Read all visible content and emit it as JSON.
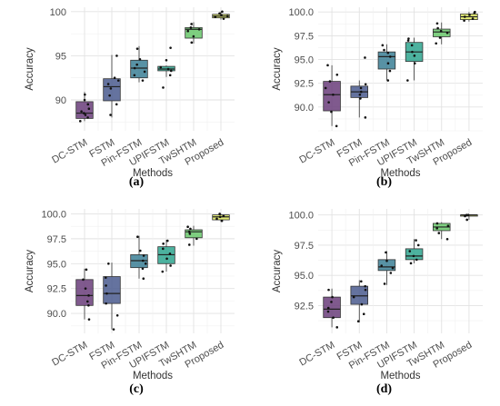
{
  "chart_data": [
    {
      "type": "box",
      "panel_label": "(a)",
      "xlabel": "Methods",
      "ylabel": "Accuracy",
      "categories": [
        "DC-STM",
        "FSTM",
        "Pin-FSTM",
        "UPIFSTM",
        "TwSHTM",
        "Proposed"
      ],
      "ylim": [
        86.5,
        100.5
      ],
      "yticks": [
        "90",
        "95",
        "100"
      ],
      "grid": true,
      "boxes": [
        {
          "category": "DC-STM",
          "whisker_low": 87.6,
          "q1": 87.9,
          "median": 88.5,
          "q3": 89.8,
          "whisker_high": 90.9,
          "color": "#6a3d7a",
          "points": [
            87.6,
            88.0,
            88.3,
            88.5,
            88.7,
            89.0,
            89.5,
            90.0,
            90.6
          ]
        },
        {
          "category": "FSTM",
          "whisker_low": 88.0,
          "q1": 89.9,
          "median": 91.5,
          "q3": 92.4,
          "whisker_high": 95.1,
          "color": "#4a5a8e",
          "points": [
            88.3,
            89.5,
            90.5,
            91.3,
            91.8,
            92.2,
            92.5,
            95.0
          ]
        },
        {
          "category": "Pin-FSTM",
          "whisker_low": 92.0,
          "q1": 92.5,
          "median": 93.6,
          "q3": 94.5,
          "whisker_high": 96.1,
          "color": "#3b7f95",
          "points": [
            92.2,
            92.8,
            93.2,
            93.6,
            94.0,
            94.6,
            95.8
          ]
        },
        {
          "category": "UPIFSTM",
          "whisker_low": 92.6,
          "q1": 93.3,
          "median": 93.5,
          "q3": 93.8,
          "whisker_high": 93.9,
          "color": "#2ea58e",
          "points": [
            91.4,
            92.8,
            93.3,
            93.5,
            93.7,
            94.5,
            95.9
          ]
        },
        {
          "category": "TwSHTM",
          "whisker_low": 96.4,
          "q1": 97.0,
          "median": 98.0,
          "q3": 98.2,
          "whisker_high": 98.8,
          "color": "#67c76a",
          "points": [
            96.5,
            97.2,
            97.8,
            98.0,
            98.2,
            98.6
          ]
        },
        {
          "category": "Proposed",
          "whisker_low": 99.1,
          "q1": 99.3,
          "median": 99.5,
          "q3": 99.7,
          "whisker_high": 100.0,
          "color": "#dde65e",
          "points": [
            99.2,
            99.4,
            99.5,
            99.6,
            99.8,
            100.0
          ]
        }
      ]
    },
    {
      "type": "box",
      "panel_label": "(b)",
      "xlabel": "Methods",
      "ylabel": "Accuracy",
      "categories": [
        "DC-STM",
        "FSTM",
        "Pin-FSTM",
        "UPIFSTM",
        "TwSHTM",
        "Proposed"
      ],
      "ylim": [
        87.5,
        100.5
      ],
      "yticks": [
        "90.0",
        "92.5",
        "95.0",
        "97.5",
        "100.0"
      ],
      "grid": true,
      "boxes": [
        {
          "category": "DC-STM",
          "whisker_low": 88.0,
          "q1": 89.6,
          "median": 91.3,
          "q3": 92.7,
          "whisker_high": 94.4,
          "color": "#6a3d7a",
          "points": [
            88.0,
            89.5,
            90.5,
            91.3,
            92.0,
            92.7,
            93.4,
            94.4
          ]
        },
        {
          "category": "FSTM",
          "whisker_low": 88.9,
          "q1": 91.0,
          "median": 91.6,
          "q3": 92.2,
          "whisker_high": 92.8,
          "color": "#4a5a8e",
          "points": [
            88.9,
            90.9,
            91.3,
            91.6,
            92.0,
            92.4,
            95.2
          ]
        },
        {
          "category": "Pin-FSTM",
          "whisker_low": 92.8,
          "q1": 94.0,
          "median": 95.3,
          "q3": 95.8,
          "whisker_high": 96.6,
          "color": "#3b7f95",
          "points": [
            92.8,
            93.8,
            94.6,
            95.3,
            95.7,
            96.0,
            96.5
          ]
        },
        {
          "category": "UPIFSTM",
          "whisker_low": 92.8,
          "q1": 94.8,
          "median": 95.8,
          "q3": 96.8,
          "whisker_high": 97.3,
          "color": "#2ea58e",
          "points": [
            92.8,
            94.6,
            95.4,
            95.8,
            96.5,
            97.0,
            97.2
          ]
        },
        {
          "category": "TwSHTM",
          "whisker_low": 96.6,
          "q1": 97.4,
          "median": 97.9,
          "q3": 98.2,
          "whisker_high": 98.9,
          "color": "#67c76a",
          "points": [
            96.7,
            97.3,
            97.8,
            98.0,
            98.3,
            98.8
          ]
        },
        {
          "category": "Proposed",
          "whisker_low": 99.0,
          "q1": 99.2,
          "median": 99.5,
          "q3": 99.8,
          "whisker_high": 100.0,
          "color": "#dde65e",
          "points": [
            99.1,
            99.3,
            99.5,
            99.7,
            99.9,
            100.0
          ]
        }
      ]
    },
    {
      "type": "box",
      "panel_label": "(c)",
      "xlabel": "Methods",
      "ylabel": "Accuracy",
      "categories": [
        "DC-STM",
        "FSTM",
        "Pin-FSTM",
        "UPIFSTM",
        "TwSHTM",
        "Proposed"
      ],
      "ylim": [
        88.0,
        100.5
      ],
      "yticks": [
        "90.0",
        "92.5",
        "95.0",
        "97.5",
        "100.0"
      ],
      "grid": true,
      "boxes": [
        {
          "category": "DC-STM",
          "whisker_low": 89.4,
          "q1": 90.8,
          "median": 91.8,
          "q3": 93.4,
          "whisker_high": 94.5,
          "color": "#6a3d7a",
          "points": [
            89.4,
            90.8,
            91.2,
            91.8,
            92.5,
            93.4,
            94.4
          ]
        },
        {
          "category": "FSTM",
          "whisker_low": 88.4,
          "q1": 91.0,
          "median": 92.0,
          "q3": 93.7,
          "whisker_high": 95.1,
          "color": "#4a5a8e",
          "points": [
            88.4,
            89.8,
            91.0,
            92.0,
            92.8,
            93.6,
            95.0
          ]
        },
        {
          "category": "Pin-FSTM",
          "whisker_low": 93.5,
          "q1": 94.6,
          "median": 95.3,
          "q3": 95.9,
          "whisker_high": 97.8,
          "color": "#3b7f95",
          "points": [
            93.5,
            94.5,
            95.0,
            95.3,
            95.8,
            96.3,
            97.7
          ]
        },
        {
          "category": "UPIFSTM",
          "whisker_low": 94.2,
          "q1": 95.0,
          "median": 95.9,
          "q3": 96.7,
          "whisker_high": 97.4,
          "color": "#2ea58e",
          "points": [
            94.2,
            94.8,
            95.5,
            96.0,
            96.5,
            97.0,
            97.3
          ]
        },
        {
          "category": "TwSHTM",
          "whisker_low": 96.8,
          "q1": 97.6,
          "median": 98.2,
          "q3": 98.4,
          "whisker_high": 98.8,
          "color": "#67c76a",
          "points": [
            96.9,
            97.5,
            98.0,
            98.2,
            98.5,
            98.7
          ]
        },
        {
          "category": "Proposed",
          "whisker_low": 99.2,
          "q1": 99.4,
          "median": 99.7,
          "q3": 99.9,
          "whisker_high": 100.0,
          "color": "#dde65e",
          "points": [
            99.3,
            99.5,
            99.7,
            99.8,
            100.0
          ]
        }
      ]
    },
    {
      "type": "box",
      "panel_label": "(d)",
      "xlabel": "Methods",
      "ylabel": "Accuracy",
      "categories": [
        "DC-STM",
        "FSTM",
        "Pin-FSTM",
        "UPIFSTM",
        "TwSHTM",
        "Proposed"
      ],
      "ylim": [
        90.2,
        100.5
      ],
      "yticks": [
        "92.5",
        "95.0",
        "97.5",
        "100.0"
      ],
      "grid": true,
      "boxes": [
        {
          "category": "DC-STM",
          "whisker_low": 90.7,
          "q1": 91.5,
          "median": 92.2,
          "q3": 93.2,
          "whisker_high": 93.9,
          "color": "#6a3d7a",
          "points": [
            90.7,
            91.5,
            92.0,
            92.3,
            92.8,
            93.2,
            93.8
          ]
        },
        {
          "category": "FSTM",
          "whisker_low": 91.1,
          "q1": 92.6,
          "median": 93.3,
          "q3": 94.1,
          "whisker_high": 94.6,
          "color": "#4a5a8e",
          "points": [
            91.2,
            91.8,
            92.6,
            93.2,
            93.8,
            94.1,
            94.5
          ]
        },
        {
          "category": "Pin-FSTM",
          "whisker_low": 94.2,
          "q1": 95.4,
          "median": 95.7,
          "q3": 96.3,
          "whisker_high": 97.0,
          "color": "#3b7f95",
          "points": [
            94.3,
            95.2,
            95.6,
            95.8,
            96.2,
            96.9
          ]
        },
        {
          "category": "UPIFSTM",
          "whisker_low": 96.0,
          "q1": 96.3,
          "median": 96.6,
          "q3": 97.2,
          "whisker_high": 98.0,
          "color": "#2ea58e",
          "points": [
            96.0,
            96.3,
            96.6,
            97.0,
            97.5,
            97.9
          ]
        },
        {
          "category": "TwSHTM",
          "whisker_low": 98.0,
          "q1": 98.7,
          "median": 99.0,
          "q3": 99.3,
          "whisker_high": 99.4,
          "color": "#67c76a",
          "points": [
            98.0,
            98.5,
            98.9,
            99.1,
            99.3
          ]
        },
        {
          "category": "Proposed",
          "whisker_low": 99.6,
          "q1": 99.9,
          "median": 100.0,
          "q3": 100.0,
          "whisker_high": 100.0,
          "color": "#dde65e",
          "points": [
            99.6,
            99.9,
            100.0,
            100.0
          ]
        }
      ]
    }
  ]
}
